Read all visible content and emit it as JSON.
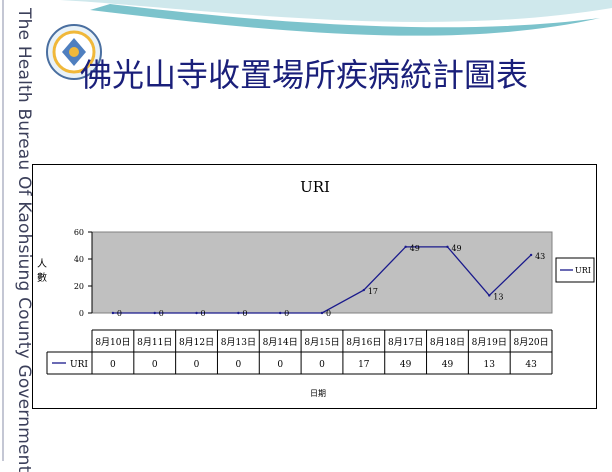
{
  "slide": {
    "title": "佛光山寺收置場所疾病統計圖表",
    "side_text": "The Health Bureau Of Kaohsiung County Government",
    "logo_icon": "health-bureau-seal-icon",
    "accent_color": "#1a1f7a",
    "swoosh_color": "#5fb8c4"
  },
  "chart_data": {
    "type": "line",
    "title": "URI",
    "ylabel": "人數",
    "xlabel": "日期",
    "ylim": [
      0,
      60
    ],
    "yticks": [
      0,
      20,
      40,
      60
    ],
    "grid": false,
    "legend_position": "right",
    "categories": [
      "8月10日",
      "8月11日",
      "8月12日",
      "8月13日",
      "8月14日",
      "8月15日",
      "8月16日",
      "8月17日",
      "8月18日",
      "8月19日",
      "8月20日"
    ],
    "series": [
      {
        "name": "URI",
        "values": [
          0,
          0,
          0,
          0,
          0,
          0,
          17,
          49,
          49,
          13,
          43
        ],
        "color": "#1a1a8c"
      }
    ],
    "plot_background": "#c0c0c0",
    "data_table": true
  }
}
